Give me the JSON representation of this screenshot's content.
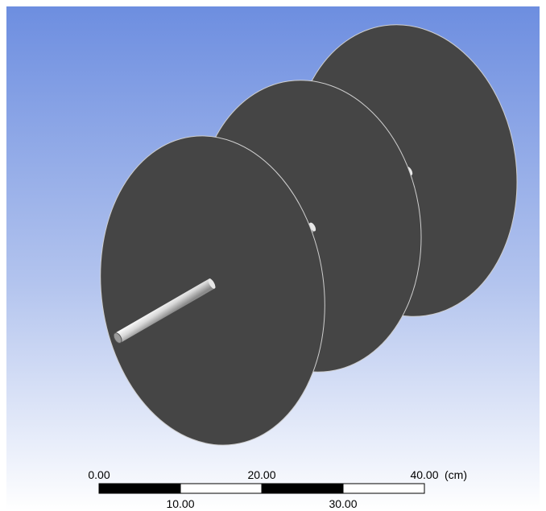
{
  "scale_bar": {
    "top_labels": [
      "0.00",
      "20.00",
      "40.00"
    ],
    "unit": "(cm)",
    "bottom_labels": [
      "10.00",
      "30.00"
    ]
  }
}
